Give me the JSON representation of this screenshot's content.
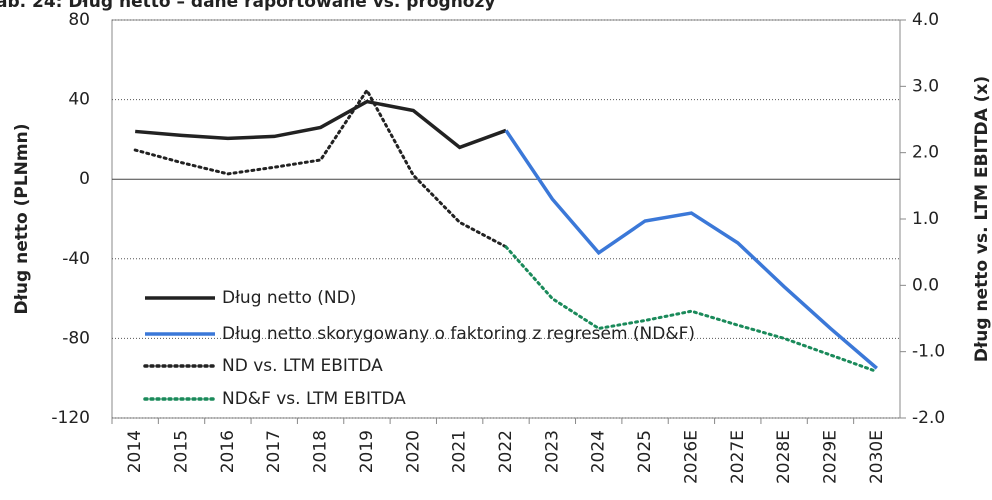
{
  "chart_data": {
    "type": "line",
    "title": "ab. 24: Dług netto – dane raportowane vs. prognozy",
    "y_label": "Dług netto (PLNmn)",
    "y2_label": "Dług netto vs. LTM EBITDA (x)",
    "categories": [
      "2014",
      "2015",
      "2016",
      "2017",
      "2018",
      "2019",
      "2020",
      "2021",
      "2022",
      "2023",
      "2024",
      "2025",
      "2026E",
      "2027E",
      "2028E",
      "2029E",
      "2030E"
    ],
    "ylim": [
      -120,
      80
    ],
    "yticks": [
      -120,
      -80,
      -40,
      0,
      40,
      80
    ],
    "y2lim": [
      -2,
      4
    ],
    "y2ticks": [
      {
        "value": -2,
        "label": "-2.0"
      },
      {
        "value": -1,
        "label": "-1.0"
      },
      {
        "value": 0,
        "label": "0.0"
      },
      {
        "value": 1,
        "label": "1.0"
      },
      {
        "value": 2,
        "label": "2.0"
      },
      {
        "value": 3,
        "label": "3.0"
      },
      {
        "value": 4,
        "label": "4.0"
      }
    ],
    "grid": true,
    "legend": "lower left",
    "series": [
      {
        "name": "Dług netto (ND)",
        "color": "#222222",
        "style": "solid",
        "values": [
          24,
          22,
          20.5,
          21.5,
          26,
          39,
          34.5,
          16,
          24.5,
          null,
          null,
          null,
          null,
          null,
          null,
          null,
          null
        ]
      },
      {
        "name": "Dług netto skorygowany o faktoring z regresem (ND&F)",
        "color": "#3b78d8",
        "style": "solid",
        "values": [
          null,
          null,
          null,
          null,
          null,
          null,
          null,
          null,
          24.5,
          -10,
          -37,
          -21,
          -17,
          -32,
          -54,
          -75,
          -95
        ]
      },
      {
        "name": "ND vs. LTM EBITDA",
        "color": "#222222",
        "style": "dotted",
        "axis": "y2",
        "values": [
          2.04,
          1.85,
          1.68,
          1.78,
          1.89,
          2.94,
          1.66,
          0.95,
          0.58,
          null,
          null,
          null,
          null,
          null,
          null,
          null,
          null
        ]
      },
      {
        "name": "ND&F vs. LTM EBITDA",
        "color": "#1a8a5a",
        "style": "dotted",
        "axis": "y2",
        "values": [
          null,
          null,
          null,
          null,
          null,
          null,
          null,
          null,
          0.58,
          -0.2,
          -0.65,
          -0.53,
          -0.39,
          -0.6,
          -0.8,
          -1.05,
          -1.3
        ]
      }
    ]
  }
}
